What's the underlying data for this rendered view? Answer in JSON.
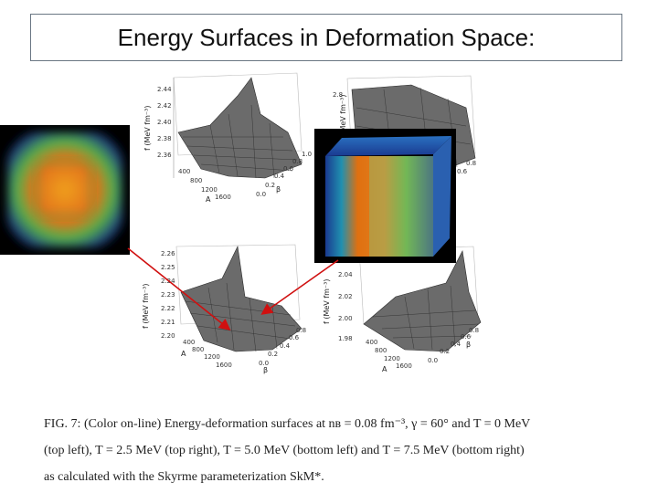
{
  "title": "Energy Surfaces in Deformation Space:",
  "panels": [
    {
      "id": "top-left",
      "zlabel": "f (MeV fm⁻³)",
      "zticks": [
        "2.44",
        "2.42",
        "2.40",
        "2.38",
        "2.36"
      ],
      "aticks": [
        "400",
        "800",
        "1200",
        "1600"
      ],
      "aname": "A",
      "bticks": [
        "0.0",
        "0.2",
        "0.4",
        "0.6",
        "0.8",
        "1.0"
      ],
      "bname": "β"
    },
    {
      "id": "top-right",
      "zlabel": "f (MeV fm⁻³)",
      "zticks": [
        "2.8"
      ],
      "aticks": [],
      "aname": "",
      "bticks": [
        "0.6",
        "0.8"
      ],
      "bname": "β"
    },
    {
      "id": "bottom-left",
      "zlabel": "f (MeV fm⁻³)",
      "zticks": [
        "2.26",
        "2.25",
        "2.24",
        "2.23",
        "2.22",
        "2.21",
        "2.20"
      ],
      "aticks": [
        "400",
        "800",
        "1200",
        "1600"
      ],
      "aname": "A",
      "bticks": [
        "0.0",
        "0.2",
        "0.4",
        "0.6",
        "0.8"
      ],
      "bname": "β"
    },
    {
      "id": "bottom-right",
      "zlabel": "f (MeV fm⁻³)",
      "zticks": [
        "2.04",
        "2.02",
        "2.00",
        "1.98"
      ],
      "aticks": [
        "400",
        "800",
        "1200",
        "1600"
      ],
      "aname": "A",
      "bticks": [
        "0.0",
        "0.2",
        "0.4",
        "0.6",
        "0.8"
      ],
      "bname": "β"
    }
  ],
  "caption": {
    "line1": "FIG. 7: (Color on-line) Energy-deformation surfaces at nʙ = 0.08 fm⁻³, γ = 60° and T = 0 MeV",
    "line2": "(top left), T = 2.5 MeV (top right), T = 5.0 MeV (bottom left) and T = 7.5 MeV (bottom right)",
    "line3": "as calculated with the Skyrme parameterization SkM*."
  },
  "colors": {
    "arrow": "#d01010",
    "surface": "#6b6b6b",
    "mesh": "#2a2a2a"
  }
}
